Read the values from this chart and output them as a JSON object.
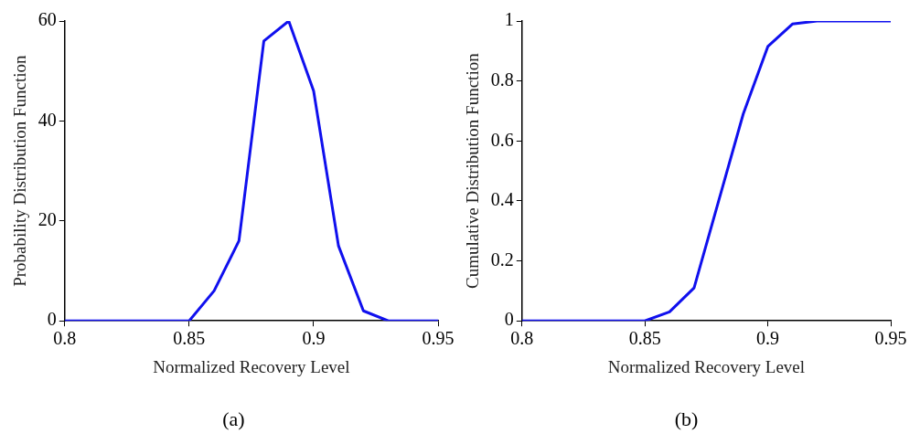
{
  "chart_data": [
    {
      "type": "line",
      "xlabel": "Normalized Recovery Level",
      "ylabel": "Probability Distribution Function",
      "annotations": [
        "(a)"
      ],
      "xlim": [
        0.8,
        0.95
      ],
      "xticks": [
        0.8,
        0.85,
        0.9,
        0.95
      ],
      "ylim": [
        0,
        60
      ],
      "yticks": [
        0,
        20,
        40,
        60
      ],
      "grid": false,
      "legend": false,
      "marker": "none",
      "line_style": "solid",
      "series": [
        {
          "color": "#1010ee",
          "x": [
            0.8,
            0.85,
            0.86,
            0.87,
            0.88,
            0.89,
            0.9,
            0.91,
            0.92,
            0.93,
            0.94,
            0.95
          ],
          "values": [
            0,
            0,
            6,
            16,
            56,
            60,
            46,
            15,
            2,
            0,
            0,
            0
          ]
        }
      ]
    },
    {
      "type": "line",
      "xlabel": "Normalized Recovery Level",
      "ylabel": "Cumulative Distribution Function",
      "annotations": [
        "(b)"
      ],
      "xlim": [
        0.8,
        0.95
      ],
      "xticks": [
        0.8,
        0.85,
        0.9,
        0.95
      ],
      "ylim": [
        0,
        1
      ],
      "yticks": [
        0,
        0.2,
        0.4,
        0.6,
        0.8,
        1
      ],
      "grid": false,
      "legend": false,
      "marker": "none",
      "line_style": "solid",
      "series": [
        {
          "color": "#1010ee",
          "x": [
            0.8,
            0.85,
            0.86,
            0.87,
            0.88,
            0.89,
            0.9,
            0.91,
            0.92,
            0.93,
            0.94,
            0.95
          ],
          "values": [
            0,
            0,
            0.03,
            0.11,
            0.4,
            0.69,
            0.915,
            0.99,
            1,
            1,
            1,
            1
          ]
        }
      ]
    }
  ]
}
